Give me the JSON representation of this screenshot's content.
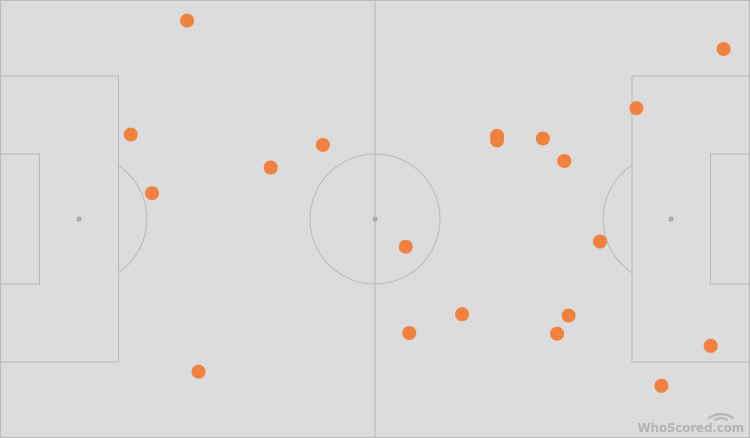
{
  "pitch": {
    "length": 105,
    "width": 68,
    "background": "#dcdcdc",
    "line_color": "#b9b9b9",
    "marker_color": "#f0813e"
  },
  "events": [
    {
      "x": 26.2,
      "y": 64.8
    },
    {
      "x": 18.3,
      "y": 47.1
    },
    {
      "x": 21.3,
      "y": 38.0
    },
    {
      "x": 37.9,
      "y": 42.0
    },
    {
      "x": 45.2,
      "y": 45.5
    },
    {
      "x": 27.8,
      "y": 10.3
    },
    {
      "x": 56.8,
      "y": 29.7
    },
    {
      "x": 57.3,
      "y": 16.3
    },
    {
      "x": 64.7,
      "y": 19.2
    },
    {
      "x": 69.6,
      "y": 46.9
    },
    {
      "x": 69.6,
      "y": 46.2
    },
    {
      "x": 76.0,
      "y": 46.5
    },
    {
      "x": 79.0,
      "y": 43.0
    },
    {
      "x": 84.0,
      "y": 30.5
    },
    {
      "x": 89.1,
      "y": 51.2
    },
    {
      "x": 101.3,
      "y": 60.4
    },
    {
      "x": 78.0,
      "y": 16.2
    },
    {
      "x": 79.6,
      "y": 19.0
    },
    {
      "x": 99.5,
      "y": 14.3
    },
    {
      "x": 92.6,
      "y": 8.1
    }
  ],
  "watermark": {
    "text": "WhoScored.com",
    "icon": "whoscored-logo-icon"
  }
}
